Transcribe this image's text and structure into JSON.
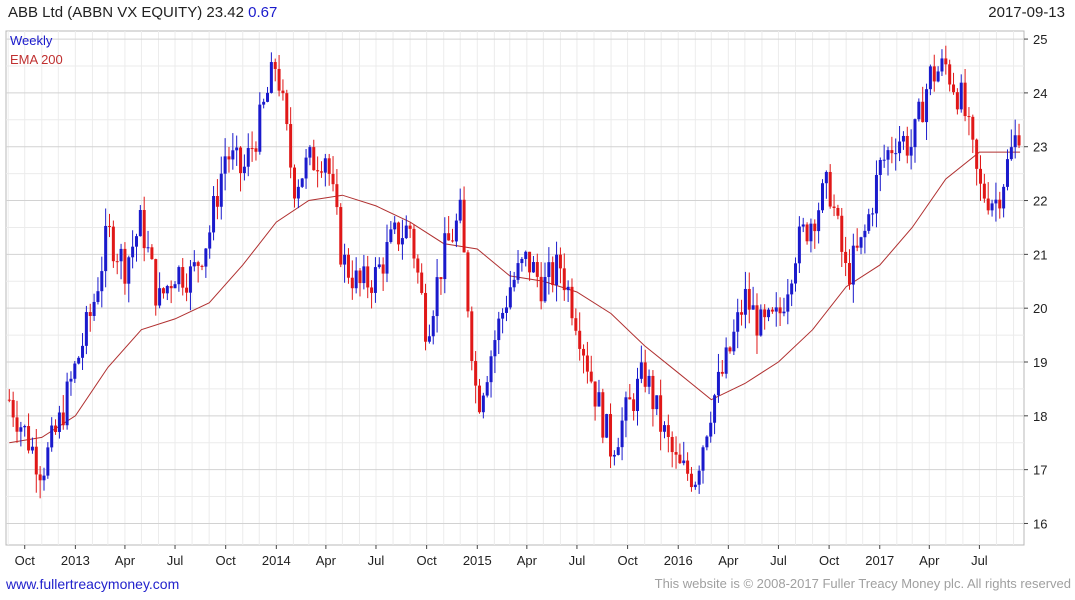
{
  "header": {
    "ticker": "ABB Ltd (ABBN VX EQUITY)",
    "price": "23.42",
    "change": "0.67",
    "date": "2017-09-13"
  },
  "footer": {
    "website": "www.fullertreacymoney.com",
    "copyright": "This website is © 2008-2017 Fuller Treacy Money plc. All rights reserved"
  },
  "chart_data": {
    "type": "candlestick",
    "legend": [
      "Weekly",
      "EMA 200"
    ],
    "colors": {
      "up": "#1a1acc",
      "down": "#e01818",
      "ema": "#b03030",
      "grid": "#d8d8d8"
    },
    "x_labels": [
      "Oct",
      "2013",
      "Apr",
      "Jul",
      "Oct",
      "2014",
      "Apr",
      "Jul",
      "Oct",
      "2015",
      "Apr",
      "Jul",
      "Oct",
      "2016",
      "Apr",
      "Jul",
      "Oct",
      "2017",
      "Apr",
      "Jul"
    ],
    "x_label_dates": [
      "2012-10-01",
      "2013-01-01",
      "2013-04-01",
      "2013-07-01",
      "2013-10-01",
      "2014-01-01",
      "2014-04-01",
      "2014-07-01",
      "2014-10-01",
      "2015-01-01",
      "2015-04-01",
      "2015-07-01",
      "2015-10-01",
      "2016-01-01",
      "2016-04-01",
      "2016-07-01",
      "2016-10-01",
      "2017-01-01",
      "2017-04-01",
      "2017-07-01"
    ],
    "y_ticks": [
      16,
      17,
      18,
      19,
      20,
      21,
      22,
      23,
      24,
      25
    ],
    "ylim": [
      15.6,
      25.15
    ],
    "xlim": [
      "2012-08-28",
      "2017-09-20"
    ],
    "close_series": [
      {
        "date": "2012-09-03",
        "close": 18.3
      },
      {
        "date": "2012-10-01",
        "close": 17.7
      },
      {
        "date": "2012-11-01",
        "close": 17.0
      },
      {
        "date": "2012-12-01",
        "close": 17.8
      },
      {
        "date": "2013-01-01",
        "close": 18.9
      },
      {
        "date": "2013-02-01",
        "close": 20.0
      },
      {
        "date": "2013-03-01",
        "close": 21.4
      },
      {
        "date": "2013-04-01",
        "close": 20.8
      },
      {
        "date": "2013-05-01",
        "close": 21.6
      },
      {
        "date": "2013-06-01",
        "close": 20.1
      },
      {
        "date": "2013-07-01",
        "close": 20.7
      },
      {
        "date": "2013-08-01",
        "close": 20.6
      },
      {
        "date": "2013-09-01",
        "close": 21.4
      },
      {
        "date": "2013-10-01",
        "close": 22.9
      },
      {
        "date": "2013-11-01",
        "close": 22.5
      },
      {
        "date": "2013-12-01",
        "close": 23.4
      },
      {
        "date": "2014-01-01",
        "close": 24.6
      },
      {
        "date": "2014-02-01",
        "close": 22.3
      },
      {
        "date": "2014-03-01",
        "close": 22.7
      },
      {
        "date": "2014-04-01",
        "close": 22.9
      },
      {
        "date": "2014-05-01",
        "close": 20.9
      },
      {
        "date": "2014-06-01",
        "close": 20.4
      },
      {
        "date": "2014-07-01",
        "close": 20.6
      },
      {
        "date": "2014-08-01",
        "close": 21.3
      },
      {
        "date": "2014-09-01",
        "close": 21.5
      },
      {
        "date": "2014-10-01",
        "close": 19.6
      },
      {
        "date": "2014-11-01",
        "close": 21.0
      },
      {
        "date": "2014-12-01",
        "close": 21.7
      },
      {
        "date": "2015-01-01",
        "close": 18.2
      },
      {
        "date": "2015-02-01",
        "close": 19.4
      },
      {
        "date": "2015-03-01",
        "close": 20.4
      },
      {
        "date": "2015-04-01",
        "close": 20.9
      },
      {
        "date": "2015-05-01",
        "close": 20.4
      },
      {
        "date": "2015-06-01",
        "close": 20.8
      },
      {
        "date": "2015-07-01",
        "close": 19.8
      },
      {
        "date": "2015-08-01",
        "close": 18.5
      },
      {
        "date": "2015-09-01",
        "close": 17.4
      },
      {
        "date": "2015-10-01",
        "close": 18.1
      },
      {
        "date": "2015-11-01",
        "close": 18.8
      },
      {
        "date": "2015-12-01",
        "close": 17.8
      },
      {
        "date": "2016-01-01",
        "close": 17.0
      },
      {
        "date": "2016-02-01",
        "close": 16.9
      },
      {
        "date": "2016-03-01",
        "close": 18.2
      },
      {
        "date": "2016-04-01",
        "close": 19.1
      },
      {
        "date": "2016-05-01",
        "close": 20.2
      },
      {
        "date": "2016-06-01",
        "close": 19.6
      },
      {
        "date": "2016-07-01",
        "close": 19.8
      },
      {
        "date": "2016-08-01",
        "close": 21.1
      },
      {
        "date": "2016-09-01",
        "close": 21.7
      },
      {
        "date": "2016-10-01",
        "close": 22.3
      },
      {
        "date": "2016-11-01",
        "close": 20.6
      },
      {
        "date": "2016-12-01",
        "close": 21.2
      },
      {
        "date": "2017-01-01",
        "close": 22.6
      },
      {
        "date": "2017-02-01",
        "close": 23.2
      },
      {
        "date": "2017-03-01",
        "close": 23.0
      },
      {
        "date": "2017-04-01",
        "close": 24.3
      },
      {
        "date": "2017-05-01",
        "close": 24.5
      },
      {
        "date": "2017-06-01",
        "close": 23.8
      },
      {
        "date": "2017-07-01",
        "close": 22.2
      },
      {
        "date": "2017-08-01",
        "close": 22.0
      },
      {
        "date": "2017-09-13",
        "close": 23.42
      }
    ],
    "ema200_series": [
      {
        "date": "2012-09-03",
        "value": 17.5
      },
      {
        "date": "2012-11-01",
        "value": 17.6
      },
      {
        "date": "2013-01-01",
        "value": 18.0
      },
      {
        "date": "2013-03-01",
        "value": 18.9
      },
      {
        "date": "2013-05-01",
        "value": 19.6
      },
      {
        "date": "2013-07-01",
        "value": 19.8
      },
      {
        "date": "2013-09-01",
        "value": 20.1
      },
      {
        "date": "2013-11-01",
        "value": 20.8
      },
      {
        "date": "2014-01-01",
        "value": 21.6
      },
      {
        "date": "2014-03-01",
        "value": 22.0
      },
      {
        "date": "2014-05-01",
        "value": 22.1
      },
      {
        "date": "2014-07-01",
        "value": 21.9
      },
      {
        "date": "2014-09-01",
        "value": 21.6
      },
      {
        "date": "2014-11-01",
        "value": 21.2
      },
      {
        "date": "2015-01-01",
        "value": 21.1
      },
      {
        "date": "2015-03-01",
        "value": 20.6
      },
      {
        "date": "2015-05-01",
        "value": 20.5
      },
      {
        "date": "2015-07-01",
        "value": 20.3
      },
      {
        "date": "2015-09-01",
        "value": 19.9
      },
      {
        "date": "2015-11-01",
        "value": 19.3
      },
      {
        "date": "2016-01-01",
        "value": 18.8
      },
      {
        "date": "2016-03-01",
        "value": 18.3
      },
      {
        "date": "2016-05-01",
        "value": 18.6
      },
      {
        "date": "2016-07-01",
        "value": 19.0
      },
      {
        "date": "2016-09-01",
        "value": 19.6
      },
      {
        "date": "2016-11-01",
        "value": 20.4
      },
      {
        "date": "2017-01-01",
        "value": 20.8
      },
      {
        "date": "2017-03-01",
        "value": 21.5
      },
      {
        "date": "2017-05-01",
        "value": 22.4
      },
      {
        "date": "2017-07-01",
        "value": 22.9
      },
      {
        "date": "2017-09-13",
        "value": 22.9
      }
    ]
  }
}
